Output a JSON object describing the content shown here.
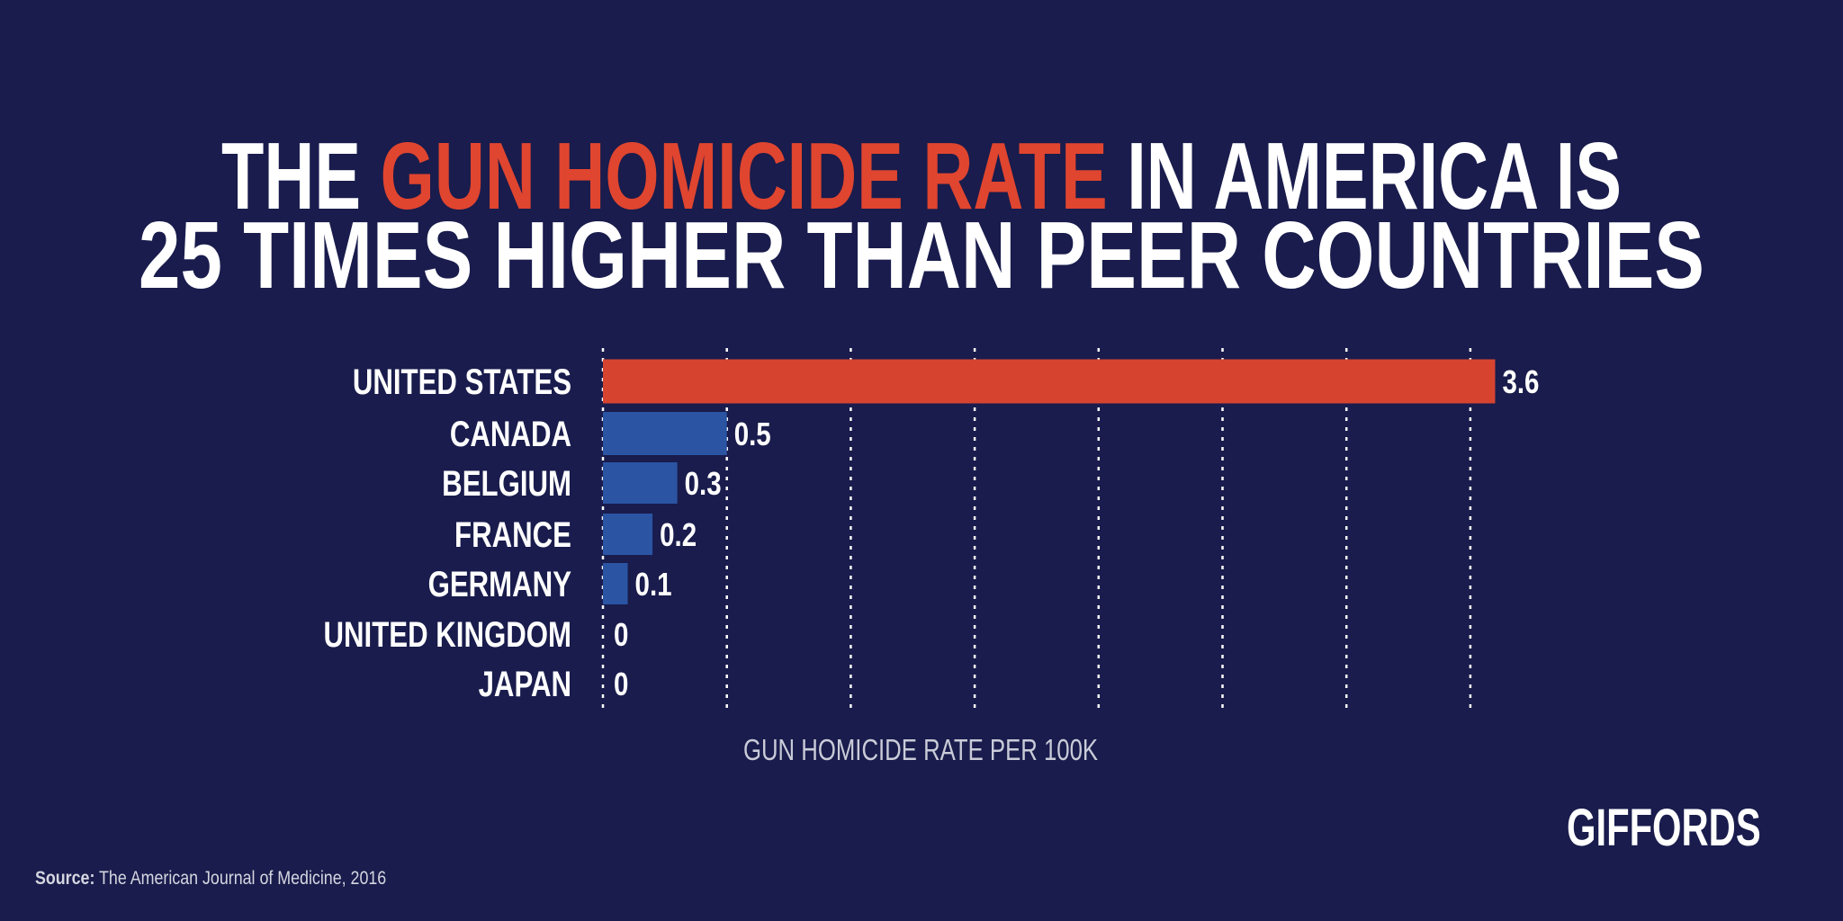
{
  "title": {
    "line1_prefix": "THE ",
    "line1_highlight": "GUN HOMICIDE RATE",
    "line1_suffix": " IN AMERICA IS",
    "line2": "25 TIMES HIGHER THAN PEER COUNTRIES"
  },
  "colors": {
    "background": "#191c4c",
    "highlight": "#e0452f",
    "us_bar": "#d64430",
    "peer_bar": "#2b54a3",
    "text": "#ffffff",
    "axis_label": "#c9cbd8"
  },
  "chart_data": {
    "type": "bar",
    "orientation": "horizontal",
    "categories": [
      "UNITED STATES",
      "CANADA",
      "BELGIUM",
      "FRANCE",
      "GERMANY",
      "UNITED KINGDOM",
      "JAPAN"
    ],
    "values": [
      3.6,
      0.5,
      0.3,
      0.2,
      0.1,
      0,
      0
    ],
    "value_labels": [
      "3.6",
      "0.5",
      "0.3",
      "0.2",
      "0.1",
      "0",
      "0"
    ],
    "xlabel": "GUN HOMICIDE RATE PER 100K",
    "xlim": [
      0,
      3.6
    ],
    "gridlines": [
      0,
      0.5,
      1.0,
      1.5,
      2.0,
      2.5,
      3.0,
      3.5
    ],
    "grid": "vertical dotted",
    "highlighted_category": "UNITED STATES"
  },
  "footer": {
    "source_label": "Source:",
    "source_text": " The American Journal of Medicine, 2016",
    "logo": "GIFFORDS"
  }
}
